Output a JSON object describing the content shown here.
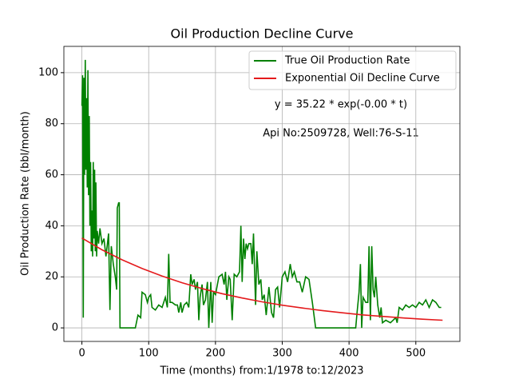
{
  "chart_data": {
    "type": "line",
    "title": "Oil Production Decline Curve",
    "xlabel": "Time (months) from:1/1978 to:12/2023",
    "ylabel": "Oil Production Rate (bbl/month)",
    "annotations": [
      "y = 35.22 * exp(-0.00 * t)",
      "Api No:2509728, Well:76-S-11"
    ],
    "xlim": [
      -27,
      566
    ],
    "ylim": [
      -5.3,
      110.3
    ],
    "xticks": [
      0,
      100,
      200,
      300,
      400,
      500
    ],
    "yticks": [
      0,
      20,
      40,
      60,
      80,
      100
    ],
    "grid": true,
    "legend": "upper right",
    "series": [
      {
        "name": "True Oil Production Rate",
        "color": "#008000",
        "x": [
          0,
          1,
          2,
          3,
          4,
          5,
          6,
          7,
          8,
          9,
          10,
          11,
          12,
          13,
          14,
          15,
          16,
          17,
          18,
          19,
          20,
          21,
          22,
          23,
          25,
          27,
          30,
          33,
          36,
          40,
          42,
          44,
          47,
          50,
          52,
          53,
          55,
          56,
          57,
          80,
          84,
          88,
          90,
          95,
          98,
          100,
          103,
          105,
          110,
          115,
          120,
          125,
          128,
          130,
          132,
          135,
          140,
          143,
          145,
          148,
          150,
          153,
          157,
          160,
          163,
          165,
          168,
          170,
          173,
          175,
          177,
          180,
          182,
          185,
          188,
          190,
          193,
          195,
          197,
          200,
          205,
          210,
          213,
          215,
          217,
          220,
          222,
          225,
          228,
          232,
          236,
          238,
          240,
          242,
          244,
          246,
          248,
          250,
          253,
          255,
          257,
          260,
          262,
          265,
          268,
          270,
          273,
          276,
          280,
          284,
          287,
          290,
          293,
          296,
          300,
          304,
          308,
          312,
          315,
          318,
          322,
          326,
          330,
          335,
          340,
          345,
          350,
          410,
          412,
          415,
          417,
          419,
          421,
          425,
          428,
          430,
          432,
          434,
          436,
          438,
          440,
          443,
          446,
          448,
          450,
          455,
          462,
          470,
          472,
          475,
          480,
          485,
          490,
          495,
          500,
          505,
          510,
          515,
          520,
          525,
          530,
          535,
          538
        ],
        "values": [
          87,
          99,
          4,
          98,
          60,
          105,
          62,
          90,
          55,
          101,
          52,
          83,
          40,
          65,
          30,
          46,
          28,
          65,
          35,
          62,
          30,
          57,
          28,
          38,
          33,
          39,
          33,
          35,
          28,
          37,
          7,
          32,
          25,
          20,
          15,
          47,
          49,
          49,
          0,
          0,
          5,
          4,
          14,
          13,
          10,
          12,
          13,
          8,
          7,
          9,
          8,
          12,
          8,
          29,
          10,
          10,
          9,
          9,
          6,
          10,
          6,
          9,
          10,
          8,
          21,
          17,
          19,
          15,
          18,
          3,
          12,
          17,
          9,
          11,
          18,
          0,
          18,
          2,
          14,
          13,
          20,
          21,
          17,
          22,
          11,
          20,
          19,
          3,
          21,
          20,
          22,
          40,
          18,
          35,
          27,
          33,
          31,
          33,
          33,
          25,
          37,
          9,
          30,
          17,
          19,
          11,
          13,
          5,
          16,
          6,
          4,
          15,
          16,
          8,
          20,
          22,
          18,
          25,
          20,
          22,
          18,
          18,
          14,
          20,
          19,
          10,
          0,
          0,
          6,
          14,
          25,
          0,
          12,
          10,
          10,
          32,
          3,
          32,
          15,
          12,
          20,
          9,
          4,
          8,
          2,
          3,
          2,
          4,
          2,
          8,
          7,
          9,
          8,
          9,
          8,
          10,
          9,
          11,
          8,
          11,
          10,
          8,
          8
        ]
      },
      {
        "name": "Exponential Oil Decline Curve",
        "color": "#e41a1c",
        "x": [
          0,
          30,
          60,
          90,
          120,
          150,
          180,
          210,
          240,
          270,
          300,
          330,
          360,
          390,
          420,
          450,
          480,
          510,
          540
        ],
        "values": [
          35.22,
          30.6,
          26.7,
          23.3,
          20.3,
          17.7,
          15.4,
          13.4,
          11.7,
          10.2,
          8.9,
          7.8,
          6.8,
          5.9,
          5.1,
          4.5,
          3.9,
          3.4,
          3.0
        ]
      }
    ]
  }
}
